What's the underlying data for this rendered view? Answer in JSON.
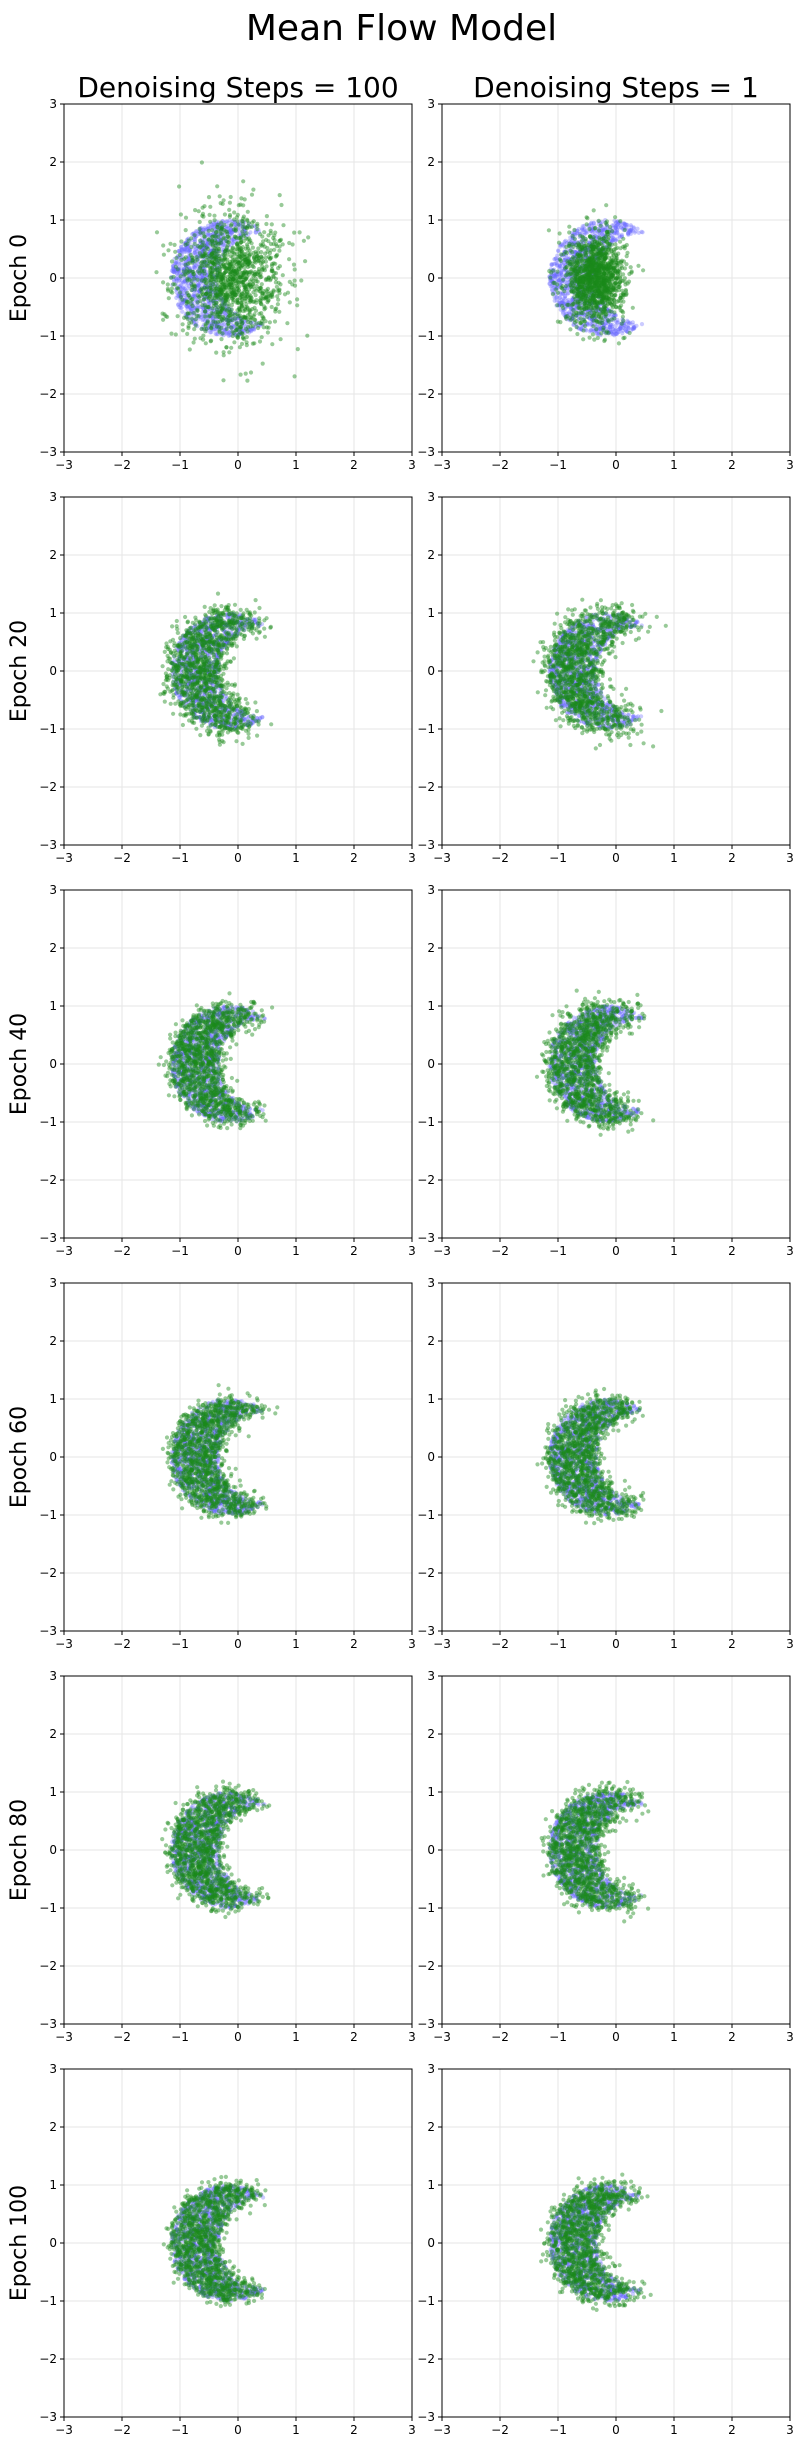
{
  "title": "Mean Flow Model",
  "columns": [
    "Denoising Steps = 100",
    "Denoising Steps = 1"
  ],
  "rows": [
    "Epoch 0",
    "Epoch 20",
    "Epoch 40",
    "Epoch 60",
    "Epoch 80",
    "Epoch 100"
  ],
  "colors": {
    "target": "#6b6bff",
    "generated": "#1a8a1a"
  },
  "chart_data": {
    "type": "scatter",
    "layout": "grid",
    "title": "Mean Flow Model",
    "xlim": [
      -3,
      3
    ],
    "ylim": [
      -3,
      3
    ],
    "xticks": [
      -3,
      -2,
      -1,
      0,
      1,
      2,
      3
    ],
    "yticks": [
      -3,
      -2,
      -1,
      0,
      1,
      2,
      3
    ],
    "grid": true,
    "target_shape": {
      "kind": "crescent",
      "outer_center": [
        -0.15,
        0.0
      ],
      "outer_radius": 1.0,
      "inner_center": [
        0.45,
        0.0
      ],
      "inner_radius": 0.78
    },
    "panels": [
      {
        "row": "Epoch 0",
        "column": "Denoising Steps = 100",
        "generated": {
          "kind": "blob",
          "center": [
            -0.1,
            0.0
          ],
          "spread": [
            0.45,
            0.55
          ]
        }
      },
      {
        "row": "Epoch 0",
        "column": "Denoising Steps = 1",
        "generated": {
          "kind": "blob",
          "center": [
            -0.35,
            0.0
          ],
          "spread": [
            0.25,
            0.38
          ]
        }
      },
      {
        "row": "Epoch 20",
        "column": "Denoising Steps = 100",
        "generated": {
          "kind": "crescent",
          "spread": 0.14
        }
      },
      {
        "row": "Epoch 20",
        "column": "Denoising Steps = 1",
        "generated": {
          "kind": "crescent",
          "spread": 0.16
        }
      },
      {
        "row": "Epoch 40",
        "column": "Denoising Steps = 100",
        "generated": {
          "kind": "crescent",
          "spread": 0.1
        }
      },
      {
        "row": "Epoch 40",
        "column": "Denoising Steps = 1",
        "generated": {
          "kind": "crescent",
          "spread": 0.12
        }
      },
      {
        "row": "Epoch 60",
        "column": "Denoising Steps = 100",
        "generated": {
          "kind": "crescent",
          "spread": 0.09
        }
      },
      {
        "row": "Epoch 60",
        "column": "Denoising Steps = 1",
        "generated": {
          "kind": "crescent",
          "spread": 0.1
        }
      },
      {
        "row": "Epoch 80",
        "column": "Denoising Steps = 100",
        "generated": {
          "kind": "crescent",
          "spread": 0.09
        }
      },
      {
        "row": "Epoch 80",
        "column": "Denoising Steps = 1",
        "generated": {
          "kind": "crescent",
          "spread": 0.11
        }
      },
      {
        "row": "Epoch 100",
        "column": "Denoising Steps = 100",
        "generated": {
          "kind": "crescent",
          "spread": 0.08
        }
      },
      {
        "row": "Epoch 100",
        "column": "Denoising Steps = 1",
        "generated": {
          "kind": "crescent",
          "spread": 0.09
        }
      }
    ]
  }
}
